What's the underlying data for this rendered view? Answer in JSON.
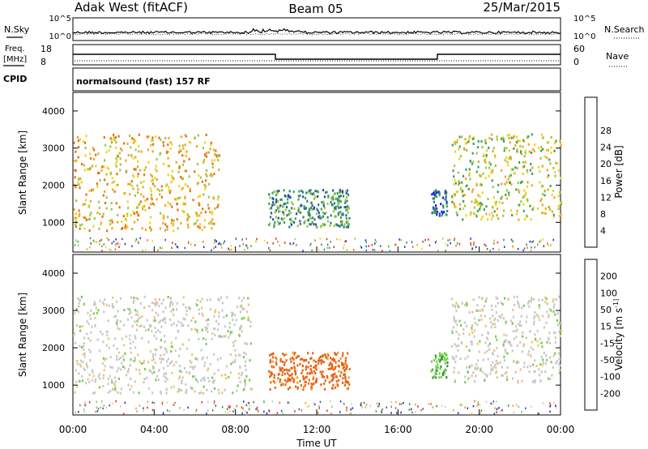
{
  "header": {
    "station": "Adak West (fitACF)",
    "beam": "Beam 05",
    "date": "25/Mar/2015"
  },
  "panels": {
    "noise": {
      "left_label": "N.Sky",
      "right_label": "N.Search",
      "left_ticks": [
        "10^5",
        "10^0"
      ],
      "right_ticks": [
        "10^5",
        "10^0"
      ]
    },
    "freq": {
      "left_label_line1": "Freq.",
      "left_label_line2": "[MHz]",
      "right_label": "Nave",
      "left_ticks": [
        "18",
        "8"
      ],
      "right_ticks": [
        "60",
        "0"
      ]
    },
    "cpid": {
      "label": "CPID",
      "text": "normalsound (fast) 157 RF"
    }
  },
  "colors": {
    "power_scale": [
      "#1f1fe6",
      "#2a4fb0",
      "#2c7f7a",
      "#3ea352",
      "#9cc83c",
      "#f0d21e",
      "#f3a51c",
      "#ee6a14",
      "#e8281a"
    ],
    "velocity_scale": [
      "#1f2fa8",
      "#2a4fc0",
      "#3a8a3c",
      "#6fd04a",
      "#c8c8c8",
      "#f3c46a",
      "#f09a1e",
      "#e86414",
      "#e8281a"
    ]
  },
  "chart_data": [
    {
      "type": "heatmap",
      "name": "power",
      "ylabel": "Slant Range [km]",
      "yticks": [
        1000,
        2000,
        3000,
        4000
      ],
      "ylim": [
        200,
        4500
      ],
      "xlim": [
        0,
        24
      ],
      "colorbar_label": "Power [dB]",
      "colorbar_ticks": [
        "4",
        "8",
        "12",
        "16",
        "20",
        "24",
        "28"
      ],
      "echo_regions": [
        {
          "t_start": 0.0,
          "t_end": 7.2,
          "range_start": 800,
          "range_end": 3400,
          "level": 24
        },
        {
          "t_start": 9.6,
          "t_end": 13.6,
          "range_start": 900,
          "range_end": 1900,
          "level": 12
        },
        {
          "t_start": 17.6,
          "t_end": 18.4,
          "range_start": 1200,
          "range_end": 1900,
          "level": 8
        },
        {
          "t_start": 18.6,
          "t_end": 24.0,
          "range_start": 1100,
          "range_end": 3400,
          "level": 20
        }
      ]
    },
    {
      "type": "heatmap",
      "name": "velocity",
      "ylabel": "Slant Range [km]",
      "yticks": [
        1000,
        2000,
        3000,
        4000
      ],
      "ylim": [
        200,
        4500
      ],
      "xlim": [
        0,
        24
      ],
      "colorbar_label": "Velocity [m s^-1]",
      "colorbar_ticks": [
        "-200",
        "-100",
        "-50",
        "-15",
        "15",
        "50",
        "100",
        "200"
      ],
      "echo_regions": [
        {
          "t_start": 0.0,
          "t_end": 8.8,
          "range_start": 800,
          "range_end": 3400,
          "level": 0
        },
        {
          "t_start": 9.6,
          "t_end": 13.6,
          "range_start": 900,
          "range_end": 1900,
          "level": -90
        },
        {
          "t_start": 17.6,
          "t_end": 18.4,
          "range_start": 1200,
          "range_end": 1900,
          "level": 40
        },
        {
          "t_start": 18.6,
          "t_end": 24.0,
          "range_start": 1100,
          "range_end": 3400,
          "level": 0
        }
      ]
    }
  ],
  "xaxis": {
    "label": "Time UT",
    "ticks": [
      "00:00",
      "04:00",
      "08:00",
      "12:00",
      "16:00",
      "20:00",
      "00:00"
    ]
  }
}
